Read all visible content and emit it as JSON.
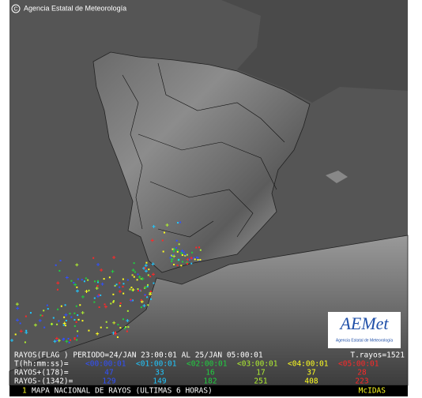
{
  "header": {
    "copyright": "Agencia Estatal de Meteorología"
  },
  "legend": {
    "period": "RAYOS(FLAG ) PERIODO=24/JAN 23:00:01 AL 25/JAN 05:00:01",
    "total": "T.rayos=1521",
    "time_label": "T(hh:mm:ss)=",
    "positive_label": "RAYOS+(178)=",
    "negative_label": "RAYOS-(1342)=",
    "intervals": [
      {
        "time": "<00:00:01",
        "positive": 47,
        "negative": 129,
        "color": "#3050ff"
      },
      {
        "time": "<01:00:01",
        "positive": 33,
        "negative": 149,
        "color": "#20c8ff"
      },
      {
        "time": "<02:00:01",
        "positive": 16,
        "negative": 182,
        "color": "#20d040"
      },
      {
        "time": "<03:00:01",
        "positive": 17,
        "negative": 251,
        "color": "#b0f030"
      },
      {
        "time": "<04:00:01",
        "positive": 37,
        "negative": 408,
        "color": "#ffff20"
      },
      {
        "time": "<05:00:01",
        "positive": 28,
        "negative": 223,
        "color": "#ff2828"
      }
    ]
  },
  "logo": {
    "name": "AEMet",
    "subtitle": "Agencia Estatal de Meteorología"
  },
  "footer": {
    "index": "1",
    "title": "MAPA NACIONAL DE RAYOS (ULTIMAS 6 HORAS)",
    "software": "McIDAS"
  }
}
